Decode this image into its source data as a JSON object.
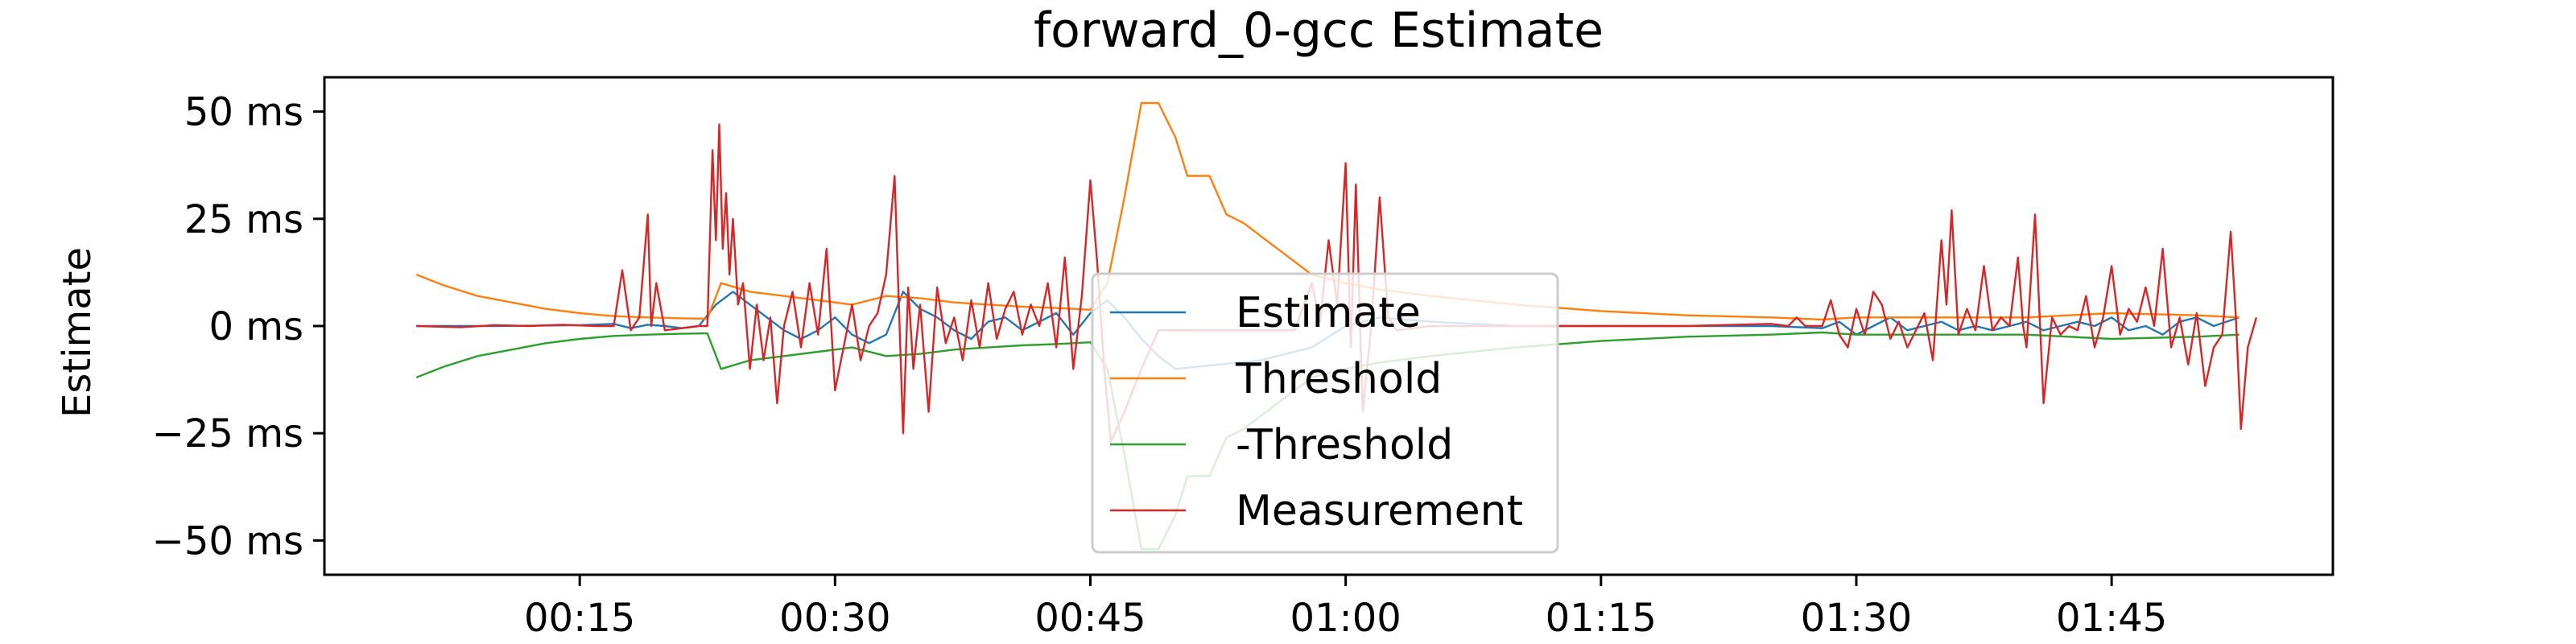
{
  "chart_data": {
    "type": "line",
    "title": "forward_0-gcc Estimate",
    "xlabel": "",
    "ylabel": "Estimate",
    "xlim_seconds": [
      0,
      118
    ],
    "ylim": [
      -58,
      58
    ],
    "grid": false,
    "legend_placement": "lower-center",
    "x_ticks": [
      {
        "value": 15,
        "label": "00:15"
      },
      {
        "value": 30,
        "label": "00:30"
      },
      {
        "value": 45,
        "label": "00:45"
      },
      {
        "value": 60,
        "label": "01:00"
      },
      {
        "value": 75,
        "label": "01:15"
      },
      {
        "value": 90,
        "label": "01:30"
      },
      {
        "value": 105,
        "label": "01:45"
      }
    ],
    "y_ticks": [
      {
        "value": 50,
        "label": "50 ms"
      },
      {
        "value": 25,
        "label": "25 ms"
      },
      {
        "value": 0,
        "label": "0 ms"
      },
      {
        "value": -25,
        "label": "−25 ms"
      },
      {
        "value": -50,
        "label": "−50 ms"
      }
    ],
    "series": [
      {
        "name": "Estimate",
        "color": "#1f77b4",
        "points": [
          [
            5.4,
            0
          ],
          [
            10,
            0
          ],
          [
            15,
            0.2
          ],
          [
            17,
            0.5
          ],
          [
            18,
            -0.5
          ],
          [
            19,
            0.3
          ],
          [
            20,
            0
          ],
          [
            21,
            -0.5
          ],
          [
            22,
            0
          ],
          [
            23,
            5
          ],
          [
            24,
            8
          ],
          [
            25,
            5
          ],
          [
            26,
            2
          ],
          [
            27,
            -1
          ],
          [
            28,
            -3
          ],
          [
            29,
            -1
          ],
          [
            30,
            2
          ],
          [
            31,
            -2
          ],
          [
            32,
            -4
          ],
          [
            33,
            -2
          ],
          [
            34,
            8
          ],
          [
            35,
            4
          ],
          [
            36,
            2
          ],
          [
            37,
            -1
          ],
          [
            38,
            -3
          ],
          [
            39,
            1
          ],
          [
            40,
            2
          ],
          [
            41,
            -1
          ],
          [
            42,
            1
          ],
          [
            43,
            3
          ],
          [
            44,
            -2
          ],
          [
            45,
            3
          ],
          [
            46,
            6
          ],
          [
            47,
            2
          ],
          [
            48,
            -3
          ],
          [
            49,
            -7
          ],
          [
            50,
            -10
          ],
          [
            55,
            -8
          ],
          [
            58,
            -5
          ],
          [
            60,
            0
          ],
          [
            62,
            2
          ],
          [
            65,
            1
          ],
          [
            70,
            0
          ],
          [
            75,
            0
          ],
          [
            80,
            0
          ],
          [
            85,
            0
          ],
          [
            88,
            -0.5
          ],
          [
            89,
            1
          ],
          [
            90,
            -2
          ],
          [
            91,
            0
          ],
          [
            92,
            2
          ],
          [
            93,
            -1
          ],
          [
            94,
            0
          ],
          [
            95,
            1
          ],
          [
            96,
            -1
          ],
          [
            97,
            0
          ],
          [
            98,
            -1
          ],
          [
            99,
            0
          ],
          [
            100,
            1
          ],
          [
            101,
            -1
          ],
          [
            102,
            0
          ],
          [
            103,
            1
          ],
          [
            104,
            0
          ],
          [
            105,
            2
          ],
          [
            106,
            -1
          ],
          [
            107,
            0
          ],
          [
            108,
            -2
          ],
          [
            109,
            1
          ],
          [
            110,
            2
          ],
          [
            111,
            0
          ],
          [
            112.5,
            2
          ]
        ]
      },
      {
        "name": "Threshold",
        "color": "#ff7f0e",
        "points": [
          [
            5.4,
            12
          ],
          [
            7,
            9.5
          ],
          [
            9,
            7
          ],
          [
            11,
            5.5
          ],
          [
            13,
            4
          ],
          [
            15,
            3
          ],
          [
            17,
            2.3
          ],
          [
            19,
            2
          ],
          [
            21,
            1.8
          ],
          [
            22.5,
            1.7
          ],
          [
            23.3,
            10
          ],
          [
            25,
            8
          ],
          [
            27,
            7
          ],
          [
            29,
            6
          ],
          [
            31,
            5
          ],
          [
            33,
            7
          ],
          [
            35,
            6.5
          ],
          [
            37,
            5.5
          ],
          [
            39,
            5
          ],
          [
            41,
            4.5
          ],
          [
            43,
            4.2
          ],
          [
            44,
            4
          ],
          [
            45,
            3.8
          ],
          [
            46,
            10
          ],
          [
            47,
            30
          ],
          [
            48,
            52
          ],
          [
            49,
            52
          ],
          [
            50,
            44
          ],
          [
            50.7,
            35
          ],
          [
            52,
            35
          ],
          [
            53,
            26
          ],
          [
            54,
            24
          ],
          [
            55,
            21
          ],
          [
            57,
            15
          ],
          [
            58,
            12
          ],
          [
            59,
            11
          ],
          [
            60,
            10
          ],
          [
            62,
            8.5
          ],
          [
            65,
            7
          ],
          [
            70,
            5
          ],
          [
            75,
            3.5
          ],
          [
            80,
            2.5
          ],
          [
            85,
            2
          ],
          [
            88,
            1.5
          ],
          [
            90,
            2
          ],
          [
            95,
            2
          ],
          [
            100,
            2
          ],
          [
            105,
            3
          ],
          [
            110,
            2.5
          ],
          [
            112.5,
            2
          ]
        ]
      },
      {
        "name": "-Threshold",
        "color": "#2ca02c",
        "points": [
          [
            5.4,
            -12
          ],
          [
            7,
            -9.5
          ],
          [
            9,
            -7
          ],
          [
            11,
            -5.5
          ],
          [
            13,
            -4
          ],
          [
            15,
            -3
          ],
          [
            17,
            -2.3
          ],
          [
            19,
            -2
          ],
          [
            21,
            -1.8
          ],
          [
            22.5,
            -1.7
          ],
          [
            23.3,
            -10
          ],
          [
            25,
            -8
          ],
          [
            27,
            -7
          ],
          [
            29,
            -6
          ],
          [
            31,
            -5
          ],
          [
            33,
            -7
          ],
          [
            35,
            -6.5
          ],
          [
            37,
            -5.5
          ],
          [
            39,
            -5
          ],
          [
            41,
            -4.5
          ],
          [
            43,
            -4.2
          ],
          [
            44,
            -4
          ],
          [
            45,
            -3.8
          ],
          [
            46,
            -10
          ],
          [
            47,
            -30
          ],
          [
            48,
            -52
          ],
          [
            49,
            -52
          ],
          [
            50,
            -44
          ],
          [
            50.7,
            -35
          ],
          [
            52,
            -35
          ],
          [
            53,
            -26
          ],
          [
            54,
            -24
          ],
          [
            55,
            -21
          ],
          [
            57,
            -15
          ],
          [
            58,
            -12
          ],
          [
            59,
            -11
          ],
          [
            60,
            -10
          ],
          [
            62,
            -8.5
          ],
          [
            65,
            -7
          ],
          [
            70,
            -5
          ],
          [
            75,
            -3.5
          ],
          [
            80,
            -2.5
          ],
          [
            85,
            -2
          ],
          [
            88,
            -1.5
          ],
          [
            90,
            -2
          ],
          [
            95,
            -2
          ],
          [
            100,
            -2
          ],
          [
            105,
            -3
          ],
          [
            110,
            -2.5
          ],
          [
            112.5,
            -2
          ]
        ]
      },
      {
        "name": "Measurement",
        "color": "#d62728",
        "points": [
          [
            5.4,
            0
          ],
          [
            8,
            -0.3
          ],
          [
            10,
            0.2
          ],
          [
            12,
            0
          ],
          [
            14,
            0.3
          ],
          [
            16,
            0
          ],
          [
            17,
            0
          ],
          [
            17.5,
            13
          ],
          [
            18,
            -1
          ],
          [
            18.5,
            2
          ],
          [
            19,
            26
          ],
          [
            19.2,
            0
          ],
          [
            19.5,
            10
          ],
          [
            20,
            -1
          ],
          [
            21,
            -0.5
          ],
          [
            22,
            0
          ],
          [
            22.5,
            0
          ],
          [
            22.8,
            41
          ],
          [
            23,
            20
          ],
          [
            23.2,
            47
          ],
          [
            23.4,
            18
          ],
          [
            23.6,
            31
          ],
          [
            23.8,
            12
          ],
          [
            24,
            25
          ],
          [
            24.3,
            5
          ],
          [
            24.6,
            10
          ],
          [
            25,
            -10
          ],
          [
            25.4,
            5
          ],
          [
            25.8,
            -8
          ],
          [
            26.2,
            2
          ],
          [
            26.6,
            -18
          ],
          [
            27,
            0
          ],
          [
            27.5,
            8
          ],
          [
            28,
            -5
          ],
          [
            28.5,
            10
          ],
          [
            29,
            -2
          ],
          [
            29.5,
            18
          ],
          [
            30,
            -15
          ],
          [
            30.5,
            -5
          ],
          [
            31,
            5
          ],
          [
            31.5,
            -8
          ],
          [
            32,
            0
          ],
          [
            32.5,
            3
          ],
          [
            33,
            12
          ],
          [
            33.5,
            35
          ],
          [
            34,
            -25
          ],
          [
            34.3,
            9
          ],
          [
            34.6,
            -10
          ],
          [
            35,
            5
          ],
          [
            35.5,
            -20
          ],
          [
            36,
            9
          ],
          [
            36.5,
            -4
          ],
          [
            37,
            2
          ],
          [
            37.5,
            -8
          ],
          [
            38,
            6
          ],
          [
            38.5,
            -5
          ],
          [
            39,
            10
          ],
          [
            39.5,
            -3
          ],
          [
            40,
            4
          ],
          [
            40.5,
            8
          ],
          [
            41,
            -2
          ],
          [
            41.5,
            5
          ],
          [
            42,
            0
          ],
          [
            42.5,
            10
          ],
          [
            43,
            -5
          ],
          [
            43.5,
            16
          ],
          [
            44,
            -10
          ],
          [
            44.5,
            7
          ],
          [
            45,
            34
          ],
          [
            45.4,
            15
          ],
          [
            45.8,
            -9
          ],
          [
            46.2,
            -27
          ],
          [
            47,
            -20
          ],
          [
            48,
            -10
          ],
          [
            49,
            -1
          ],
          [
            50,
            -1
          ],
          [
            55,
            -1
          ],
          [
            57,
            -1
          ],
          [
            58,
            10
          ],
          [
            58.5,
            1
          ],
          [
            59,
            20
          ],
          [
            59.5,
            5
          ],
          [
            60,
            38
          ],
          [
            60.3,
            -5
          ],
          [
            60.6,
            33
          ],
          [
            61,
            -20
          ],
          [
            61.5,
            0
          ],
          [
            62,
            30
          ],
          [
            62.5,
            2
          ],
          [
            63,
            -1
          ],
          [
            65,
            0
          ],
          [
            70,
            0
          ],
          [
            75,
            0
          ],
          [
            80,
            0
          ],
          [
            85,
            0.5
          ],
          [
            86,
            0
          ],
          [
            86.5,
            2
          ],
          [
            87,
            0
          ],
          [
            88,
            0
          ],
          [
            88.5,
            6
          ],
          [
            89,
            -2
          ],
          [
            89.5,
            -5
          ],
          [
            90,
            4
          ],
          [
            90.5,
            -2
          ],
          [
            91,
            8
          ],
          [
            91.5,
            5
          ],
          [
            92,
            -3
          ],
          [
            92.5,
            1
          ],
          [
            93,
            -5
          ],
          [
            93.5,
            -1
          ],
          [
            94,
            3
          ],
          [
            94.5,
            -8
          ],
          [
            95,
            20
          ],
          [
            95.3,
            5
          ],
          [
            95.6,
            27
          ],
          [
            96,
            -2
          ],
          [
            96.5,
            4
          ],
          [
            97,
            -1
          ],
          [
            97.5,
            14
          ],
          [
            98,
            -1
          ],
          [
            98.5,
            2
          ],
          [
            99,
            0
          ],
          [
            99.5,
            16
          ],
          [
            99.8,
            0
          ],
          [
            100,
            -5
          ],
          [
            100.5,
            26
          ],
          [
            101,
            -18
          ],
          [
            101.5,
            2
          ],
          [
            102,
            -2
          ],
          [
            102.5,
            0
          ],
          [
            103,
            -1
          ],
          [
            103.5,
            7
          ],
          [
            104,
            -5
          ],
          [
            104.5,
            2
          ],
          [
            105,
            14
          ],
          [
            105.5,
            -2
          ],
          [
            106,
            4
          ],
          [
            106.5,
            1
          ],
          [
            107,
            9
          ],
          [
            107.5,
            0
          ],
          [
            108,
            18
          ],
          [
            108.5,
            -5
          ],
          [
            109,
            2
          ],
          [
            109.5,
            -9
          ],
          [
            110,
            3
          ],
          [
            110.5,
            -14
          ],
          [
            111,
            -5
          ],
          [
            111.5,
            -2
          ],
          [
            112,
            22
          ],
          [
            112.3,
            2
          ],
          [
            112.6,
            -24
          ],
          [
            113,
            -5
          ],
          [
            113.5,
            2
          ]
        ]
      }
    ]
  }
}
